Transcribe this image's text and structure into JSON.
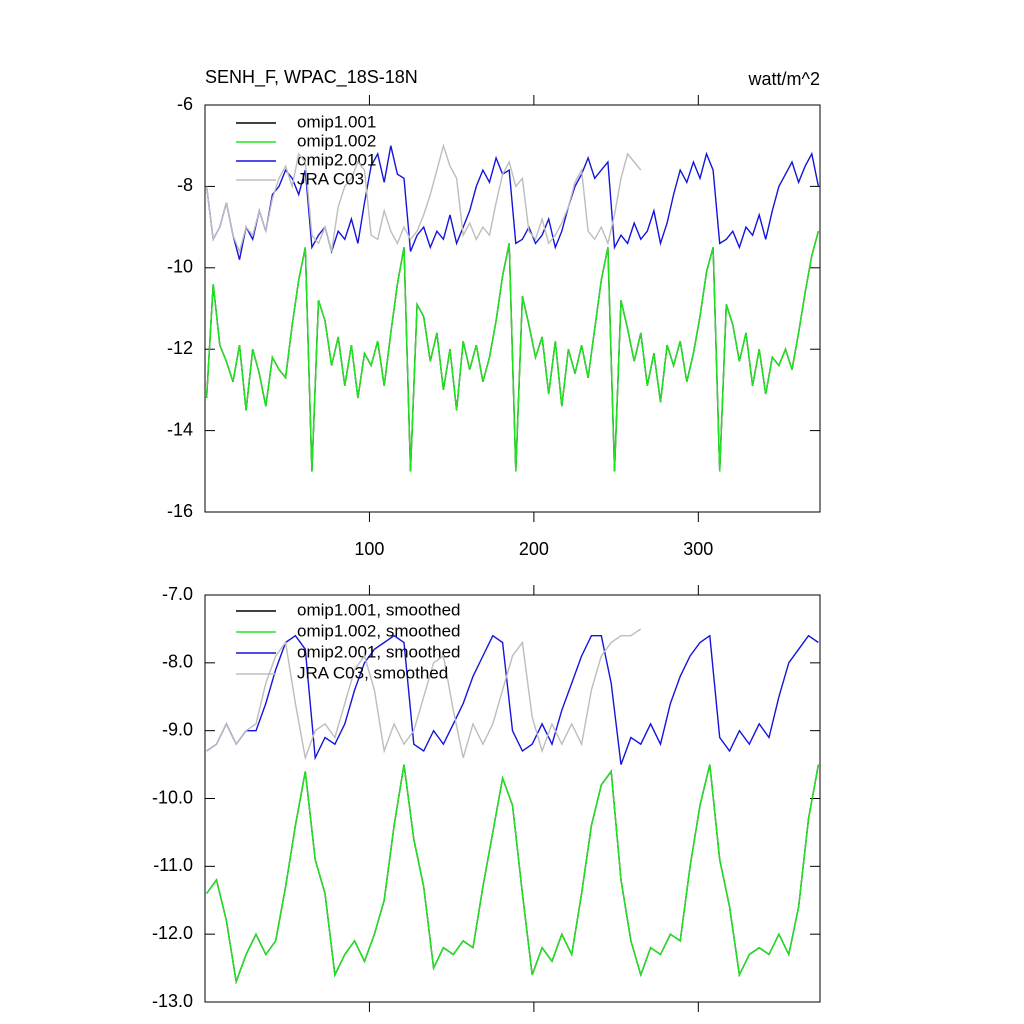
{
  "chart_data": [
    {
      "type": "line",
      "title": "SENH_F, WPAC_18S-18N",
      "units": "watt/m^2",
      "xlim": [
        0,
        374
      ],
      "xticks": [
        100,
        200,
        300
      ],
      "show_xtick_labels": true,
      "ylim": [
        -16,
        -6
      ],
      "yticks": [
        -16,
        -14,
        -12,
        -10,
        -8,
        -6
      ],
      "x": [
        1,
        5,
        9,
        13,
        17,
        21,
        25,
        29,
        33,
        37,
        41,
        45,
        49,
        53,
        57,
        61,
        65,
        69,
        73,
        77,
        81,
        85,
        89,
        93,
        97,
        101,
        105,
        109,
        113,
        117,
        121,
        125,
        129,
        133,
        137,
        141,
        145,
        149,
        153,
        157,
        161,
        165,
        169,
        173,
        177,
        181,
        185,
        189,
        193,
        197,
        201,
        205,
        209,
        213,
        217,
        221,
        225,
        229,
        233,
        237,
        241,
        245,
        249,
        253,
        257,
        261,
        265,
        269,
        273,
        277,
        281,
        285,
        289,
        293,
        297,
        301,
        305,
        309,
        313,
        317,
        321,
        325,
        329,
        333,
        337,
        341,
        345,
        349,
        353,
        357,
        361,
        365,
        369,
        373
      ],
      "series": [
        {
          "name": "omip1.001",
          "color": "#000000",
          "values": [
            -13.2,
            -10.4,
            -11.9,
            -12.3,
            -12.8,
            -11.9,
            -13.5,
            -12.0,
            -12.6,
            -13.4,
            -12.2,
            -12.5,
            -12.7,
            -11.4,
            -10.3,
            -9.5,
            -15.0,
            -10.8,
            -11.3,
            -12.4,
            -11.7,
            -12.9,
            -11.9,
            -13.2,
            -12.1,
            -12.4,
            -11.8,
            -12.9,
            -11.6,
            -10.4,
            -9.5,
            -15.0,
            -10.9,
            -11.2,
            -12.3,
            -11.6,
            -13.0,
            -12.0,
            -13.5,
            -11.8,
            -12.5,
            -11.9,
            -12.8,
            -12.2,
            -11.3,
            -10.2,
            -9.4,
            -15.0,
            -10.7,
            -11.4,
            -12.2,
            -11.7,
            -13.1,
            -11.8,
            -13.4,
            -12.0,
            -12.6,
            -11.9,
            -12.7,
            -11.5,
            -10.3,
            -9.5,
            -15.0,
            -10.8,
            -11.5,
            -12.3,
            -11.6,
            -12.9,
            -12.1,
            -13.3,
            -11.9,
            -12.4,
            -11.8,
            -12.8,
            -12.1,
            -11.2,
            -10.1,
            -9.5,
            -15.0,
            -10.9,
            -11.4,
            -12.3,
            -11.6,
            -12.9,
            -12.0,
            -13.1,
            -12.2,
            -12.4,
            -12.0,
            -12.5,
            -11.6,
            -10.6,
            -9.7,
            -9.1
          ]
        },
        {
          "name": "omip1.002",
          "color": "#1ee61e",
          "values": [
            -13.2,
            -10.4,
            -11.9,
            -12.3,
            -12.8,
            -11.9,
            -13.5,
            -12.0,
            -12.6,
            -13.4,
            -12.2,
            -12.5,
            -12.7,
            -11.4,
            -10.3,
            -9.5,
            -15.0,
            -10.8,
            -11.3,
            -12.4,
            -11.7,
            -12.9,
            -11.9,
            -13.2,
            -12.1,
            -12.4,
            -11.8,
            -12.9,
            -11.6,
            -10.4,
            -9.5,
            -15.0,
            -10.9,
            -11.2,
            -12.3,
            -11.6,
            -13.0,
            -12.0,
            -13.5,
            -11.8,
            -12.5,
            -11.9,
            -12.8,
            -12.2,
            -11.3,
            -10.2,
            -9.4,
            -15.0,
            -10.7,
            -11.4,
            -12.2,
            -11.7,
            -13.1,
            -11.8,
            -13.4,
            -12.0,
            -12.6,
            -11.9,
            -12.7,
            -11.5,
            -10.3,
            -9.5,
            -15.0,
            -10.8,
            -11.5,
            -12.3,
            -11.6,
            -12.9,
            -12.1,
            -13.3,
            -11.9,
            -12.4,
            -11.8,
            -12.8,
            -12.1,
            -11.2,
            -10.1,
            -9.5,
            -15.0,
            -10.9,
            -11.4,
            -12.3,
            -11.6,
            -12.9,
            -12.0,
            -13.1,
            -12.2,
            -12.4,
            -12.0,
            -12.5,
            -11.6,
            -10.6,
            -9.7,
            -9.1
          ]
        },
        {
          "name": "omip2.001",
          "color": "#1414dc",
          "values": [
            -8.0,
            -9.3,
            -9.0,
            -8.4,
            -9.2,
            -9.8,
            -9.0,
            -9.3,
            -8.6,
            -9.1,
            -8.2,
            -8.0,
            -7.6,
            -7.8,
            -8.2,
            -7.6,
            -9.5,
            -9.2,
            -9.0,
            -9.6,
            -9.1,
            -9.3,
            -8.8,
            -9.4,
            -8.4,
            -7.5,
            -7.2,
            -7.9,
            -7.0,
            -7.7,
            -7.8,
            -9.6,
            -9.2,
            -9.0,
            -9.5,
            -9.1,
            -9.3,
            -8.7,
            -9.4,
            -9.0,
            -8.6,
            -8.0,
            -7.6,
            -7.9,
            -7.3,
            -7.7,
            -7.6,
            -9.4,
            -9.3,
            -9.0,
            -9.4,
            -9.2,
            -8.8,
            -9.5,
            -9.1,
            -8.5,
            -8.0,
            -7.7,
            -7.3,
            -7.8,
            -7.6,
            -7.4,
            -9.5,
            -9.2,
            -9.4,
            -8.9,
            -9.3,
            -9.1,
            -8.6,
            -9.4,
            -8.9,
            -8.2,
            -7.6,
            -7.9,
            -7.4,
            -7.8,
            -7.2,
            -7.6,
            -9.4,
            -9.3,
            -9.1,
            -9.5,
            -9.0,
            -9.2,
            -8.7,
            -9.3,
            -8.6,
            -8.0,
            -7.7,
            -7.4,
            -7.9,
            -7.5,
            -7.2,
            -8.0
          ]
        },
        {
          "name": "JRA C03",
          "color": "#bdbdbd",
          "values": [
            -8.0,
            -9.3,
            -9.0,
            -8.4,
            -9.2,
            -9.6,
            -9.0,
            -9.2,
            -8.6,
            -9.1,
            -8.3,
            -7.8,
            -7.5,
            -8.0,
            -7.2,
            -7.4,
            -9.2,
            -9.4,
            -9.0,
            -9.6,
            -8.5,
            -8.0,
            -7.8,
            -7.4,
            -7.6,
            -9.2,
            -9.3,
            -8.6,
            -9.1,
            -9.4,
            -9.0,
            -9.3,
            -9.1,
            -8.7,
            -8.2,
            -7.6,
            -7.0,
            -7.5,
            -7.8,
            -9.2,
            -8.9,
            -9.3,
            -9.0,
            -9.2,
            -8.4,
            -7.7,
            -7.4,
            -8.0,
            -7.8,
            -9.1,
            -9.3,
            -8.8,
            -9.4,
            -9.2,
            -8.9,
            -8.5,
            -7.9,
            -7.6,
            -9.1,
            -9.3,
            -9.0,
            -9.4,
            -8.7,
            -7.8,
            -7.2,
            -7.4,
            -7.6,
            null,
            null,
            null,
            null,
            null,
            null,
            null,
            null,
            null,
            null,
            null,
            null,
            null,
            null,
            null,
            null,
            null,
            null,
            null,
            null,
            null,
            null,
            null,
            null,
            null,
            null,
            null
          ]
        }
      ]
    },
    {
      "type": "line",
      "xlim": [
        0,
        374
      ],
      "xticks": [
        100,
        200,
        300
      ],
      "show_xtick_labels": false,
      "ylim": [
        -13,
        -7
      ],
      "yticks": [
        {
          "value": -13,
          "label": "-13.0"
        },
        {
          "value": -12,
          "label": "-12.0"
        },
        {
          "value": -11,
          "label": "-11.0"
        },
        {
          "value": -10,
          "label": "-10.0"
        },
        {
          "value": -9,
          "label": "-9.0"
        },
        {
          "value": -8,
          "label": "-8.0"
        },
        {
          "value": -7,
          "label": "-7.0"
        }
      ],
      "x": [
        1,
        7,
        13,
        19,
        25,
        31,
        37,
        43,
        49,
        55,
        61,
        67,
        73,
        79,
        85,
        91,
        97,
        103,
        109,
        115,
        121,
        127,
        133,
        139,
        145,
        151,
        157,
        163,
        169,
        175,
        181,
        187,
        193,
        199,
        205,
        211,
        217,
        223,
        229,
        235,
        241,
        247,
        253,
        259,
        265,
        271,
        277,
        283,
        289,
        295,
        301,
        307,
        313,
        319,
        325,
        331,
        337,
        343,
        349,
        355,
        361,
        367,
        373
      ],
      "series": [
        {
          "name": "omip1.001, smoothed",
          "color": "#000000",
          "values": [
            -11.4,
            -11.2,
            -11.8,
            -12.7,
            -12.3,
            -12.0,
            -12.3,
            -12.1,
            -11.3,
            -10.4,
            -9.6,
            -10.9,
            -11.4,
            -12.6,
            -12.3,
            -12.1,
            -12.4,
            -12.0,
            -11.5,
            -10.4,
            -9.5,
            -10.6,
            -11.3,
            -12.5,
            -12.2,
            -12.3,
            -12.1,
            -12.2,
            -11.3,
            -10.5,
            -9.7,
            -10.1,
            -11.4,
            -12.6,
            -12.2,
            -12.4,
            -12.0,
            -12.3,
            -11.4,
            -10.4,
            -9.8,
            -9.6,
            -11.2,
            -12.1,
            -12.6,
            -12.2,
            -12.3,
            -12.0,
            -12.1,
            -11.0,
            -10.1,
            -9.5,
            -10.9,
            -11.6,
            -12.6,
            -12.3,
            -12.2,
            -12.3,
            -12.0,
            -12.3,
            -11.6,
            -10.3,
            -9.5
          ]
        },
        {
          "name": "omip1.002, smoothed",
          "color": "#1ee61e",
          "values": [
            -11.4,
            -11.2,
            -11.8,
            -12.7,
            -12.3,
            -12.0,
            -12.3,
            -12.1,
            -11.3,
            -10.4,
            -9.6,
            -10.9,
            -11.4,
            -12.6,
            -12.3,
            -12.1,
            -12.4,
            -12.0,
            -11.5,
            -10.4,
            -9.5,
            -10.6,
            -11.3,
            -12.5,
            -12.2,
            -12.3,
            -12.1,
            -12.2,
            -11.3,
            -10.5,
            -9.7,
            -10.1,
            -11.4,
            -12.6,
            -12.2,
            -12.4,
            -12.0,
            -12.3,
            -11.4,
            -10.4,
            -9.8,
            -9.6,
            -11.2,
            -12.1,
            -12.6,
            -12.2,
            -12.3,
            -12.0,
            -12.1,
            -11.0,
            -10.1,
            -9.5,
            -10.9,
            -11.6,
            -12.6,
            -12.3,
            -12.2,
            -12.3,
            -12.0,
            -12.3,
            -11.6,
            -10.3,
            -9.5
          ]
        },
        {
          "name": "omip2.001, smoothed",
          "color": "#1414dc",
          "values": [
            -9.3,
            -9.2,
            -8.9,
            -9.2,
            -9.0,
            -9.0,
            -8.6,
            -8.1,
            -7.7,
            -7.6,
            -7.8,
            -9.4,
            -9.1,
            -9.2,
            -8.9,
            -8.4,
            -8.0,
            -7.8,
            -7.7,
            -7.6,
            -7.7,
            -9.2,
            -9.3,
            -9.0,
            -9.2,
            -8.9,
            -8.6,
            -8.2,
            -7.9,
            -7.6,
            -7.7,
            -9.0,
            -9.3,
            -9.2,
            -8.9,
            -9.2,
            -8.7,
            -8.3,
            -7.9,
            -7.6,
            -7.6,
            -8.3,
            -9.5,
            -9.1,
            -9.2,
            -8.9,
            -9.2,
            -8.6,
            -8.2,
            -7.9,
            -7.7,
            -7.6,
            -9.1,
            -9.3,
            -9.0,
            -9.2,
            -8.9,
            -9.1,
            -8.5,
            -8.0,
            -7.8,
            -7.6,
            -7.7
          ]
        },
        {
          "name": "JRA C03, smoothed",
          "color": "#bdbdbd",
          "values": [
            -9.3,
            -9.2,
            -8.9,
            -9.2,
            -9.0,
            -8.9,
            -8.3,
            -7.9,
            -7.7,
            -8.6,
            -9.4,
            -9.0,
            -8.9,
            -9.1,
            -8.6,
            -8.1,
            -7.9,
            -8.4,
            -9.3,
            -8.9,
            -9.2,
            -9.0,
            -8.5,
            -8.0,
            -7.9,
            -8.7,
            -9.4,
            -8.9,
            -9.2,
            -8.9,
            -8.4,
            -7.9,
            -7.7,
            -8.8,
            -9.3,
            -8.9,
            -9.2,
            -8.9,
            -9.2,
            -8.4,
            -7.9,
            -7.7,
            -7.6,
            -7.6,
            -7.5,
            null,
            null,
            null,
            null,
            null,
            null,
            null,
            null,
            null,
            null,
            null,
            null,
            null,
            null,
            null,
            null,
            null,
            null
          ]
        }
      ]
    }
  ]
}
